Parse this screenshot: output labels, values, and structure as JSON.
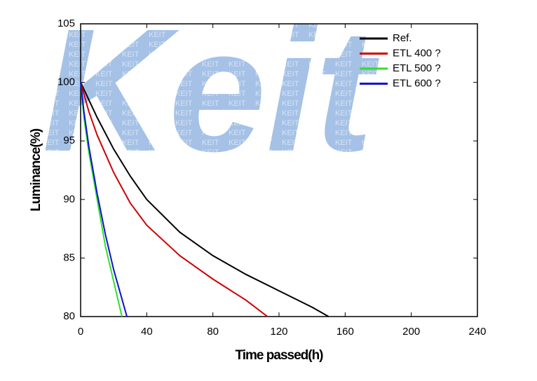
{
  "chart_data": {
    "type": "line",
    "watermark": "Keit",
    "watermark_tile": "KEIT",
    "xlabel": "Time passed(h)",
    "ylabel": "Luminance(%)",
    "xlim": [
      0,
      240
    ],
    "xticks": [
      0,
      40,
      80,
      120,
      160,
      200,
      240
    ],
    "ylim": [
      80,
      105
    ],
    "yticks": [
      80,
      85,
      90,
      95,
      100,
      105
    ],
    "legend": "top-right",
    "series": [
      {
        "name": "Ref.",
        "color": "#000000",
        "x": [
          0,
          5,
          10,
          20,
          30,
          40,
          60,
          80,
          100,
          120,
          140,
          150
        ],
        "values": [
          100,
          98.5,
          97,
          94.3,
          92,
          90,
          87.2,
          85.2,
          83.6,
          82.2,
          80.8,
          80
        ]
      },
      {
        "name": "ETL 400 ?",
        "color": "#d00000",
        "x": [
          0,
          5,
          10,
          20,
          30,
          40,
          60,
          80,
          100,
          113
        ],
        "values": [
          100,
          97.5,
          95.5,
          92.3,
          89.7,
          87.8,
          85.2,
          83.2,
          81.4,
          80
        ]
      },
      {
        "name": "ETL 500 ?",
        "color": "#33dd33",
        "x": [
          0,
          2,
          5,
          10,
          15,
          20,
          25
        ],
        "values": [
          100,
          97,
          94,
          90,
          86,
          83,
          80
        ]
      },
      {
        "name": "ETL 600 ?",
        "color": "#1010d0",
        "x": [
          0,
          2,
          5,
          10,
          15,
          20,
          25,
          28
        ],
        "values": [
          100,
          97.5,
          94.5,
          90.5,
          87,
          84,
          81.5,
          80
        ]
      }
    ]
  }
}
